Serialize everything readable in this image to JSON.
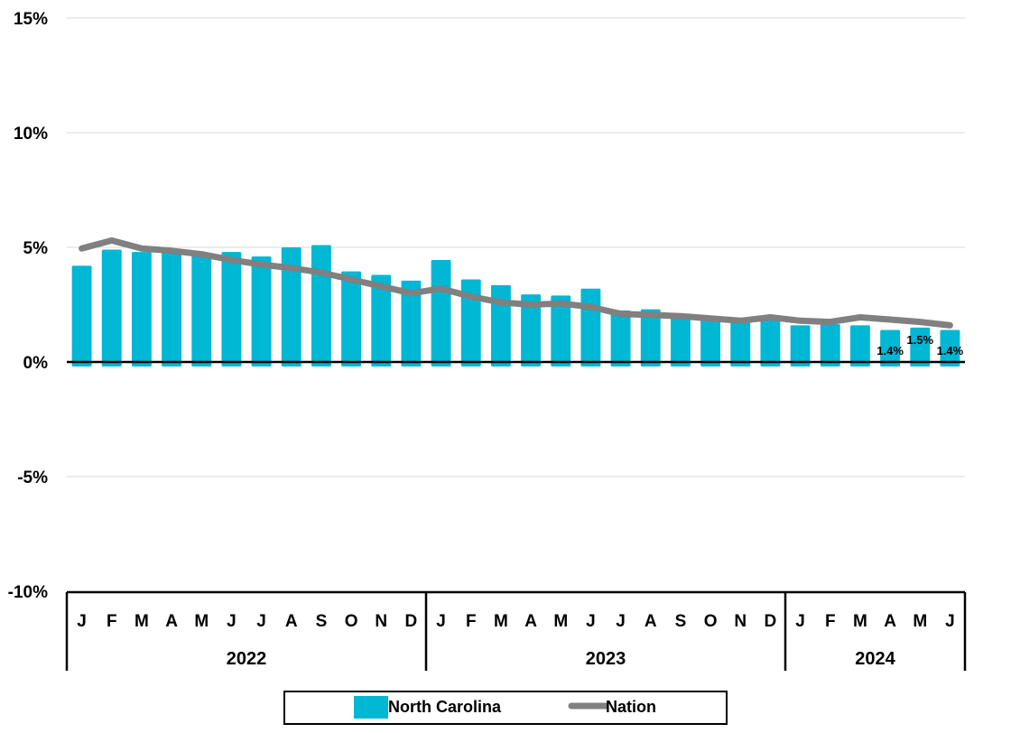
{
  "chart_data": {
    "type": "bar",
    "title": "",
    "xlabel": "",
    "ylabel": "",
    "ylim": [
      -10,
      15
    ],
    "yticks": [
      "15%",
      "10%",
      "5%",
      "0%",
      "-5%",
      "-10%"
    ],
    "ytick_values": [
      15,
      10,
      5,
      0,
      -5,
      -10
    ],
    "grid": true,
    "legend_position": "bottom",
    "colors": {
      "north_carolina": "#00B7D4",
      "nation": "#808080"
    },
    "categories": [
      "J",
      "F",
      "M",
      "A",
      "M",
      "J",
      "J",
      "A",
      "S",
      "O",
      "N",
      "D",
      "J",
      "F",
      "M",
      "A",
      "M",
      "J",
      "J",
      "A",
      "S",
      "O",
      "N",
      "D",
      "J",
      "F",
      "M",
      "A",
      "M",
      "J"
    ],
    "years": [
      {
        "label": "2022",
        "count": 12
      },
      {
        "label": "2023",
        "count": 12
      },
      {
        "label": "2024",
        "count": 6
      }
    ],
    "series": [
      {
        "name": "North Carolina",
        "kind": "bar",
        "values": [
          4.2,
          4.9,
          4.8,
          4.9,
          4.7,
          4.8,
          4.6,
          5.0,
          5.1,
          3.95,
          3.8,
          3.55,
          4.45,
          3.6,
          3.35,
          2.95,
          2.9,
          3.2,
          2.25,
          2.3,
          2.0,
          1.85,
          1.8,
          1.9,
          1.6,
          1.65,
          1.6,
          1.4,
          1.5,
          1.4
        ]
      },
      {
        "name": "Nation",
        "kind": "line",
        "values": [
          4.95,
          5.3,
          4.95,
          4.85,
          4.7,
          4.45,
          4.25,
          4.1,
          3.9,
          3.6,
          3.3,
          3.0,
          3.2,
          2.85,
          2.6,
          2.5,
          2.55,
          2.4,
          2.1,
          2.05,
          2.0,
          1.9,
          1.8,
          1.95,
          1.8,
          1.75,
          1.95,
          1.85,
          1.75,
          1.6
        ]
      }
    ],
    "data_labels": [
      {
        "index": 27,
        "text": "1.4%"
      },
      {
        "index": 28,
        "text": "1.5%"
      },
      {
        "index": 29,
        "text": "1.4%"
      }
    ]
  }
}
